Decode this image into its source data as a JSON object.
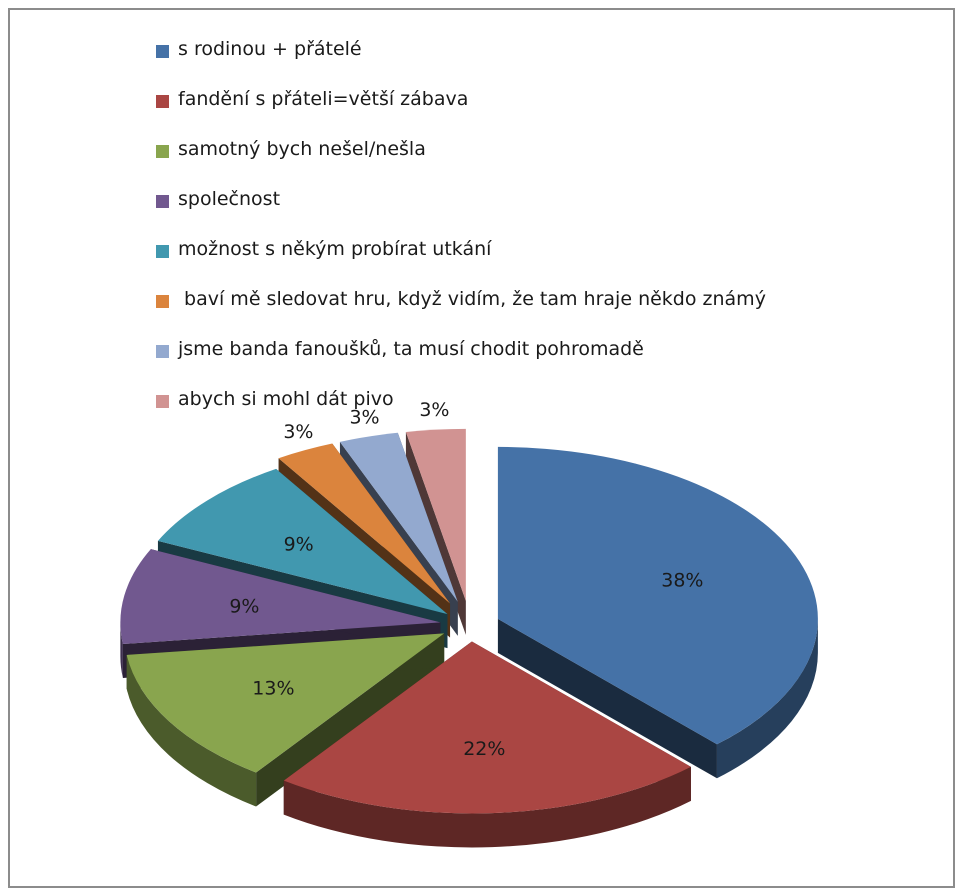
{
  "chart_data": {
    "type": "pie",
    "style": "3d-exploded",
    "title": "",
    "legend_position": "top",
    "slices": [
      {
        "label": "s rodinou + přátelé",
        "value": 38,
        "value_label": "38%",
        "color": "#4572a7"
      },
      {
        "label": "fandění s přáteli=větší zábava",
        "value": 22,
        "value_label": "22%",
        "color": "#aa4643"
      },
      {
        "label": "samotný bych nešel/nešla",
        "value": 13,
        "value_label": "13%",
        "color": "#89a54e"
      },
      {
        "label": "společnost",
        "value": 9,
        "value_label": "9%",
        "color": "#71588f"
      },
      {
        "label": "možnost s někým probírat utkání",
        "value": 9,
        "value_label": "9%",
        "color": "#4198af"
      },
      {
        "label": " baví mě sledovat hru, když vidím, že tam hraje někdo známý",
        "value": 3,
        "value_label": "3%",
        "color": "#db843d"
      },
      {
        "label": "jsme banda fanoušků, ta musí chodit pohromadě",
        "value": 3,
        "value_label": "3%",
        "color": "#93a9cf"
      },
      {
        "label": "abych si mohl dát pivo",
        "value": 3,
        "value_label": "3%",
        "color": "#d19392"
      }
    ]
  }
}
